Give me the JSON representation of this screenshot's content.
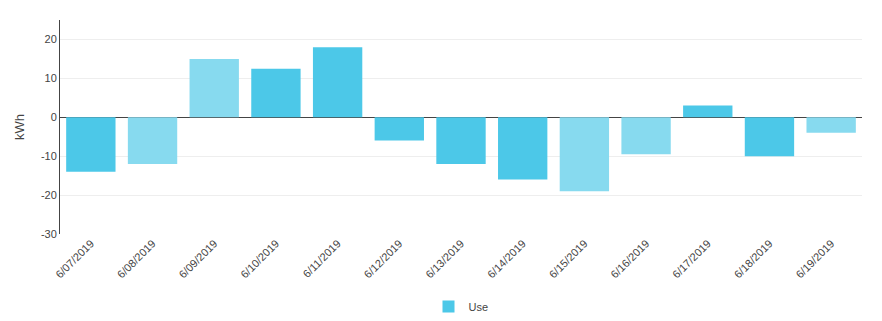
{
  "chart_data": {
    "type": "bar",
    "categories": [
      "6/07/2019",
      "6/08/2019",
      "6/09/2019",
      "6/10/2019",
      "6/11/2019",
      "6/12/2019",
      "6/13/2019",
      "6/14/2019",
      "6/15/2019",
      "6/16/2019",
      "6/17/2019",
      "6/18/2019",
      "6/19/2019"
    ],
    "series": [
      {
        "name": "Use",
        "colors": [
          "#4CC8E8",
          "#87DAEF",
          "#87DAEF",
          "#4CC8E8",
          "#4CC8E8",
          "#4CC8E8",
          "#4CC8E8",
          "#4CC8E8",
          "#87DAEF",
          "#87DAEF",
          "#4CC8E8",
          "#4CC8E8",
          "#87DAEF"
        ],
        "values": [
          -14,
          -12,
          15,
          12.5,
          18,
          -6,
          -12,
          -16,
          -19,
          -9.5,
          3,
          -10,
          -4
        ]
      }
    ],
    "ylabel": "kWh",
    "ylim": [
      -30,
      25
    ],
    "yticks": [
      -30,
      -20,
      -10,
      0,
      10,
      20
    ],
    "grid": true,
    "legend": "bottom"
  }
}
